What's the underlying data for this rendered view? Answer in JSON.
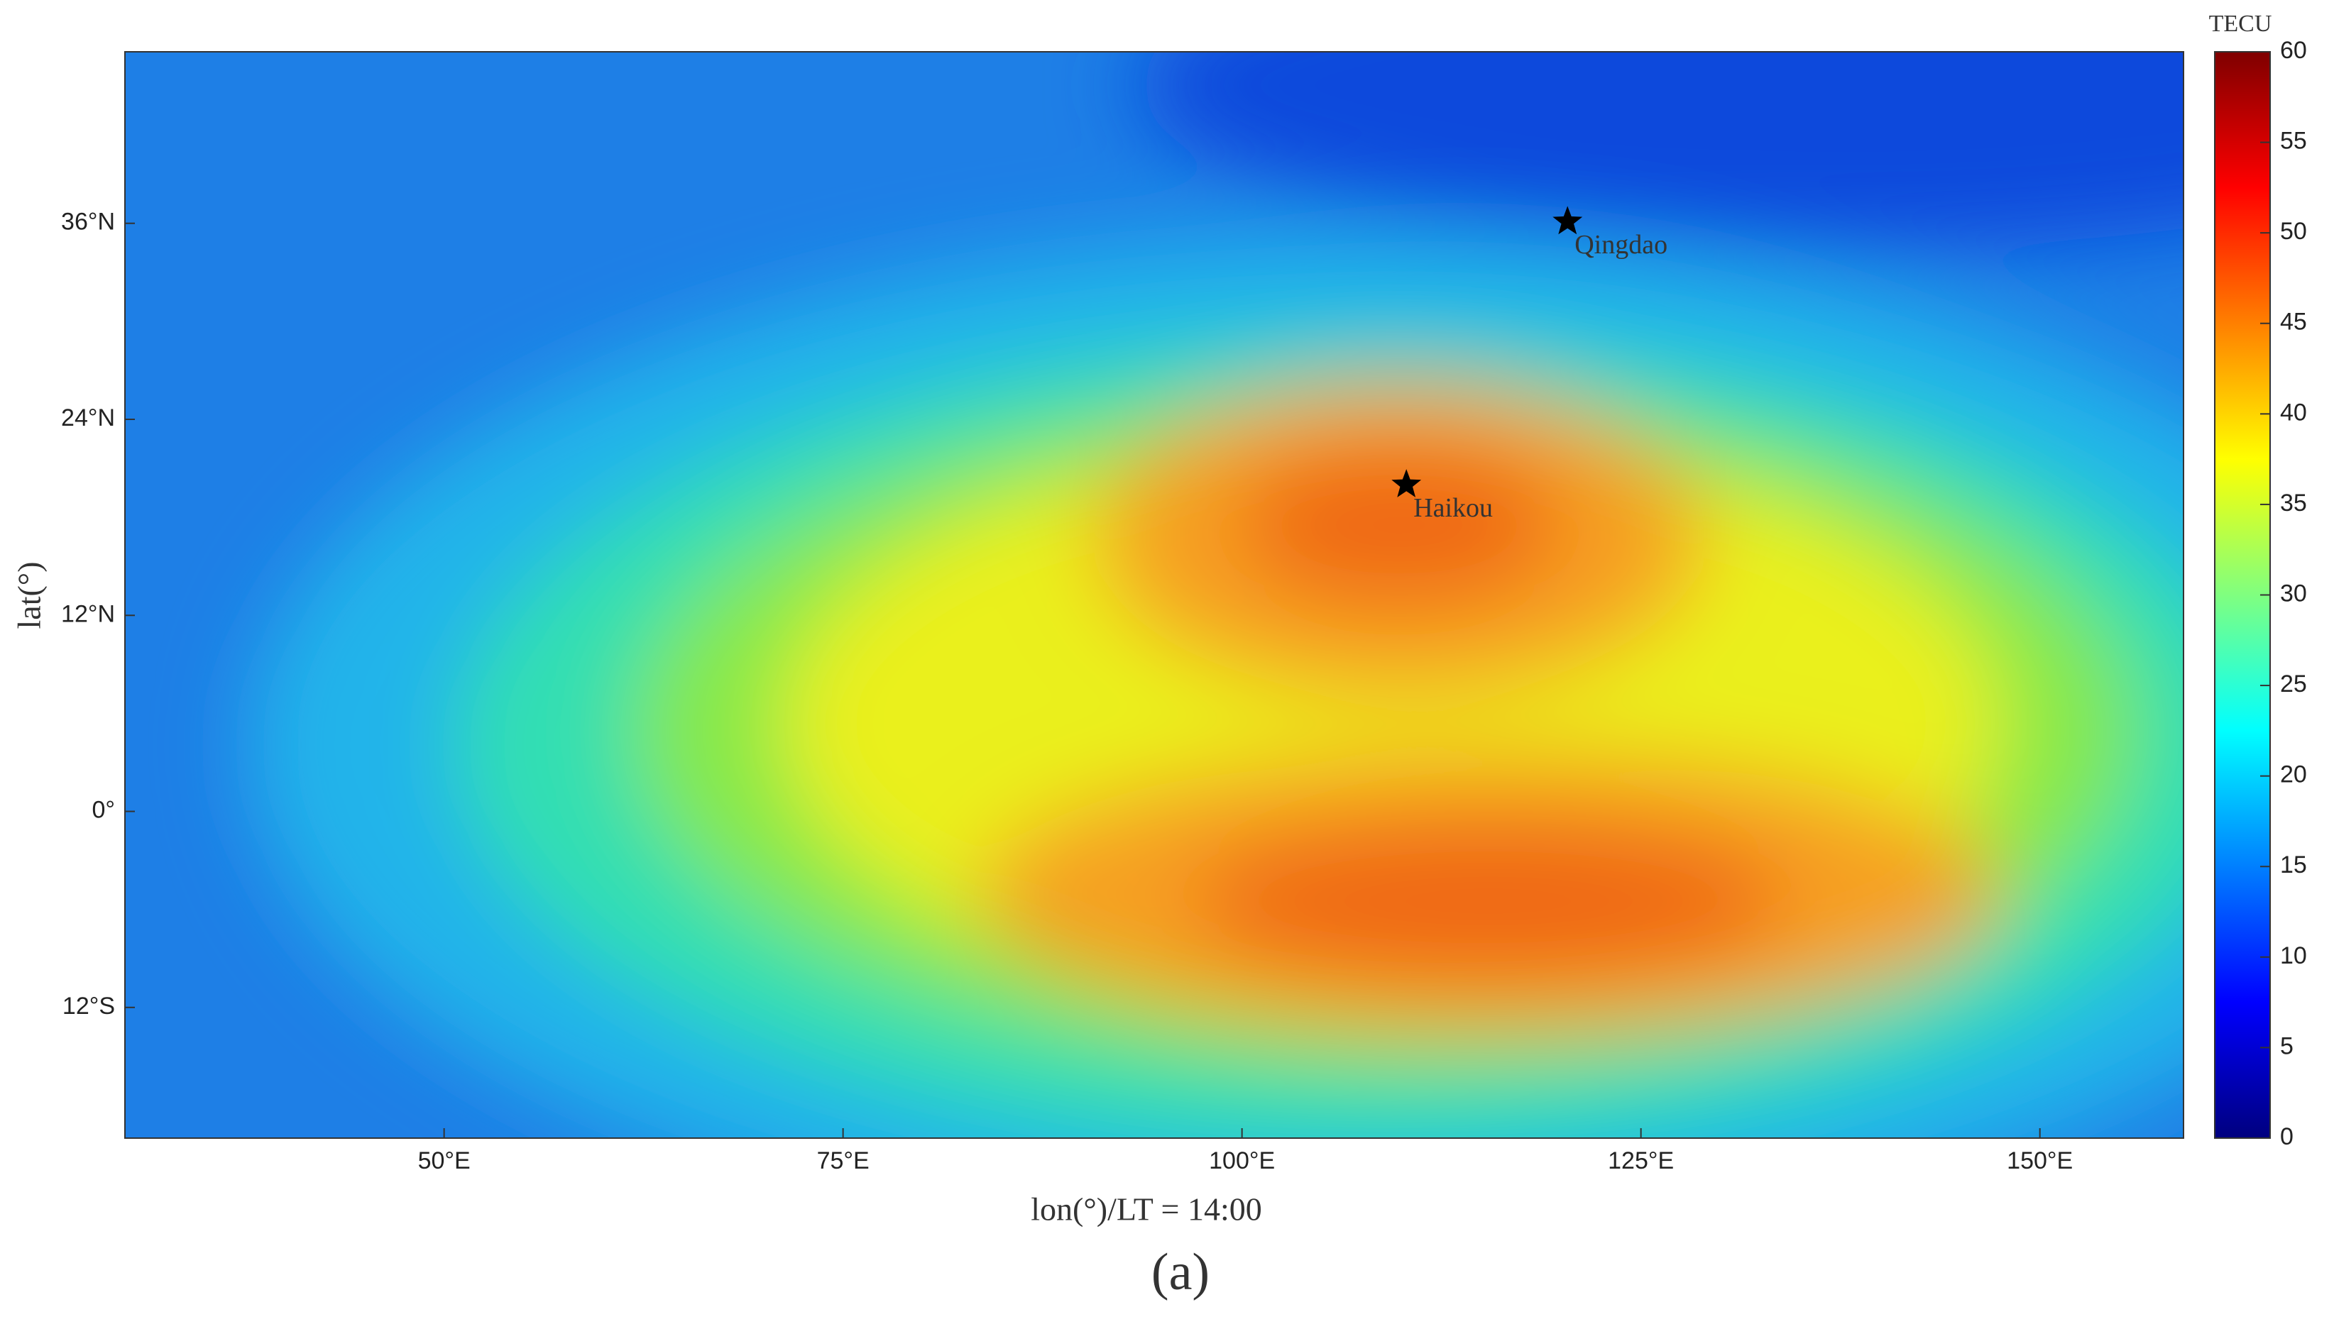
{
  "chart_data": {
    "type": "heatmap",
    "xlabel": "lon(°)/LT = 14:00",
    "ylabel": "lat(°)",
    "caption": "(a)",
    "xlim": [
      30,
      159
    ],
    "ylim": [
      -20,
      46.5
    ],
    "xticks": [
      {
        "value": 50,
        "label": "50°E"
      },
      {
        "value": 75,
        "label": "75°E"
      },
      {
        "value": 100,
        "label": "100°E"
      },
      {
        "value": 125,
        "label": "125°E"
      },
      {
        "value": 150,
        "label": "150°E"
      }
    ],
    "yticks": [
      {
        "value": -12,
        "label": "12°S"
      },
      {
        "value": 0,
        "label": "0°"
      },
      {
        "value": 12,
        "label": "12°N"
      },
      {
        "value": 24,
        "label": "24°N"
      },
      {
        "value": 36,
        "label": "36°N"
      }
    ],
    "colorbar": {
      "label": "TECU",
      "clim": [
        0,
        60
      ],
      "ticks": [
        0,
        5,
        10,
        15,
        20,
        25,
        30,
        35,
        40,
        45,
        50,
        55,
        60
      ]
    },
    "markers": [
      {
        "name": "Qingdao",
        "lon": 120.4,
        "lat": 36.1
      },
      {
        "name": "Haikou",
        "lon": 110.3,
        "lat": 20.0
      }
    ]
  }
}
